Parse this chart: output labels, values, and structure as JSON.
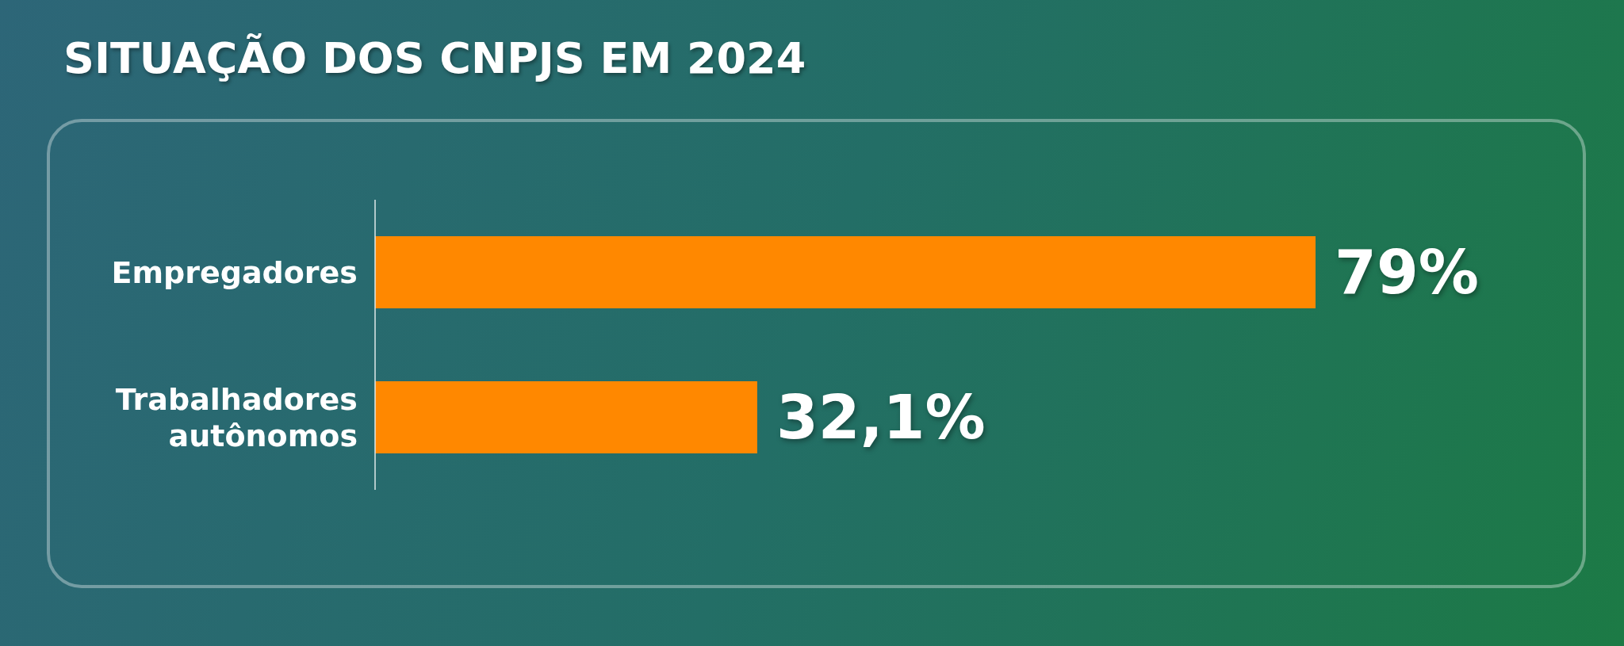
{
  "chart_data": {
    "type": "bar",
    "orientation": "horizontal",
    "title": "SITUAÇÃO DOS CNPJS EM 2024",
    "categories": [
      "Empregadores",
      "Trabalhadores autônomos"
    ],
    "values": [
      79,
      32.1
    ],
    "value_labels": [
      "79%",
      "32,1%"
    ],
    "color": "#ff8800"
  }
}
